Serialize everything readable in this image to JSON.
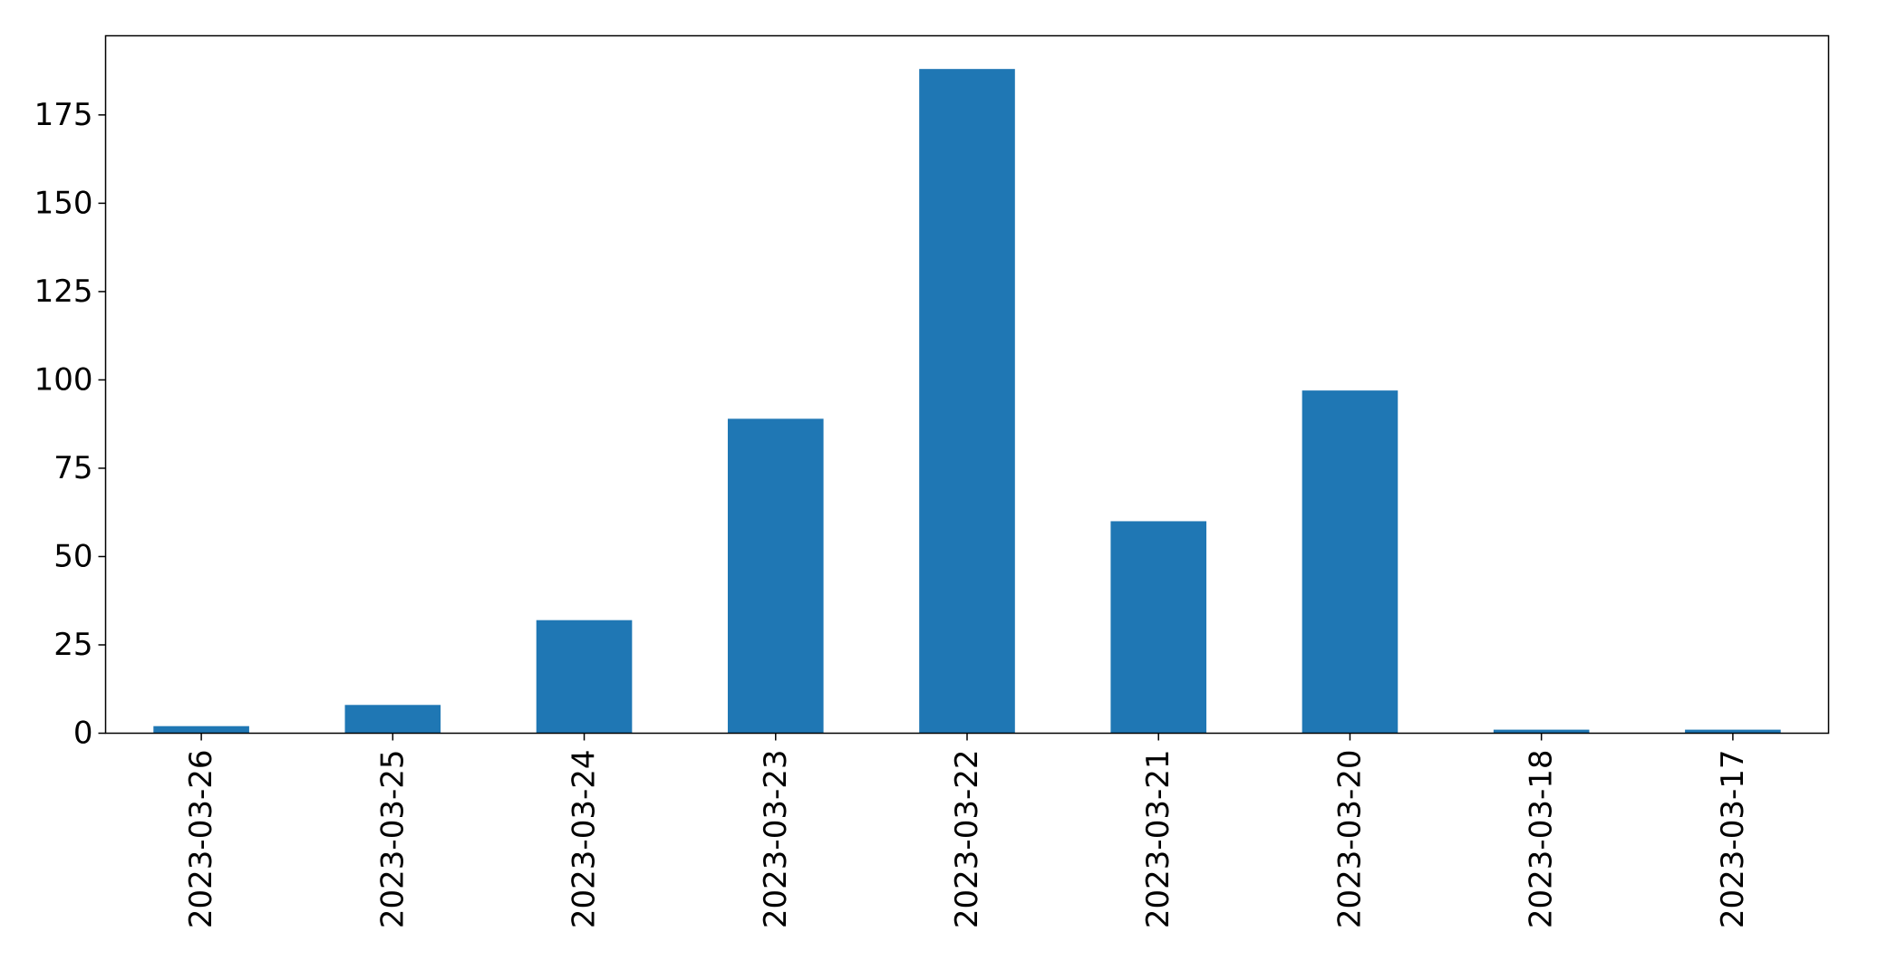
{
  "chart_data": {
    "type": "bar",
    "title": "",
    "xlabel": "",
    "ylabel": "",
    "categories": [
      "2023-03-26",
      "2023-03-25",
      "2023-03-24",
      "2023-03-23",
      "2023-03-22",
      "2023-03-21",
      "2023-03-20",
      "2023-03-18",
      "2023-03-17"
    ],
    "values": [
      2,
      8,
      32,
      89,
      188,
      60,
      97,
      1,
      1
    ],
    "ylim": [
      0,
      197.4
    ],
    "yticks": [
      0,
      25,
      50,
      75,
      100,
      125,
      150,
      175
    ],
    "bar_color": "#1f77b4",
    "grid": false,
    "legend": "none"
  }
}
